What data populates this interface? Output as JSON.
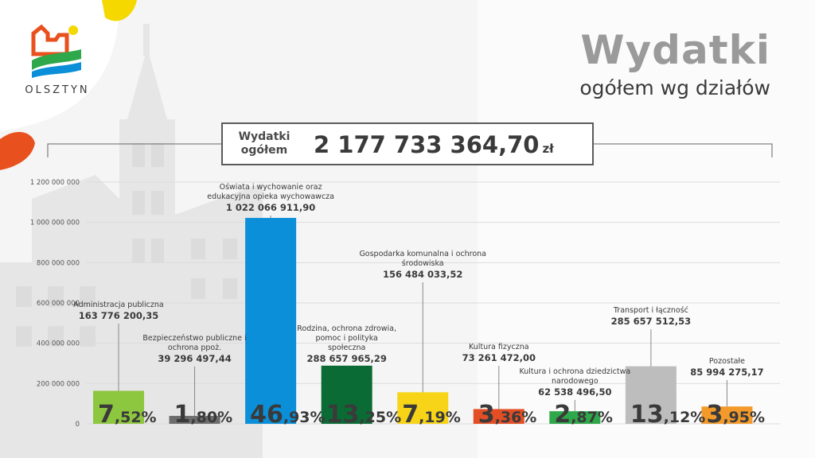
{
  "header": {
    "title": "Wydatki",
    "subtitle": "ogółem wg działów",
    "logo_text": "OLSZTYN"
  },
  "total": {
    "label": "Wydatki ogółem",
    "value": "2 177 733 364,70",
    "unit": "zł"
  },
  "colors": {
    "title_gray": "#9a9a9a",
    "text_dark": "#3a3a3a",
    "accent_orange": "#e8501e",
    "accent_yellow": "#f5d800"
  },
  "chart_data": {
    "type": "bar",
    "ylim": [
      0,
      1200000000
    ],
    "yticks": [
      0,
      200000000,
      400000000,
      600000000,
      800000000,
      1000000000,
      1200000000
    ],
    "ytick_labels": [
      "0",
      "200 000 000",
      "400 000 000",
      "600 000 000",
      "800 000 000",
      "1 000 000 000",
      "1 200 000 000"
    ],
    "grid": true,
    "categories": [
      "Administracja publiczna",
      "Bezpieczeństwo publiczne i ochrona ppoż.",
      "Oświata i wychowanie oraz edukacyjna opieka wychowawcza",
      "Rodzina, ochrona zdrowia, pomoc i polityka społeczna",
      "Gospodarka komunalna i ochrona środowiska",
      "Kultura fizyczna",
      "Kultura i ochrona dziedzictwa narodowego",
      "Transport i łączność",
      "Pozostałe"
    ],
    "values": [
      163776200.35,
      39296497.44,
      1022066911.9,
      288657965.29,
      156484033.52,
      73261472.0,
      62538496.5,
      285657512.53,
      85994275.17
    ],
    "value_labels": [
      "163 776 200,35",
      "39 296 497,44",
      "1 022 066 911,90",
      "288 657 965,29",
      "156 484 033,52",
      "73 261 472,00",
      "62 538 496,50",
      "285 657 512,53",
      "85 994 275,17"
    ],
    "percent_int": [
      "7",
      "1",
      "46",
      "13",
      "7",
      "3",
      "2",
      "13",
      "3"
    ],
    "percent_dec": [
      ",52%",
      ",80%",
      ",93%",
      ",25%",
      ",19%",
      ",36%",
      ",87%",
      ",12%",
      ",95%"
    ],
    "bar_colors": [
      "#8dc63f",
      "#6d6d6d",
      "#0a8fd8",
      "#0a6b35",
      "#f7d417",
      "#e34e25",
      "#2ea84a",
      "#bdbdbd",
      "#f39a2a"
    ]
  }
}
